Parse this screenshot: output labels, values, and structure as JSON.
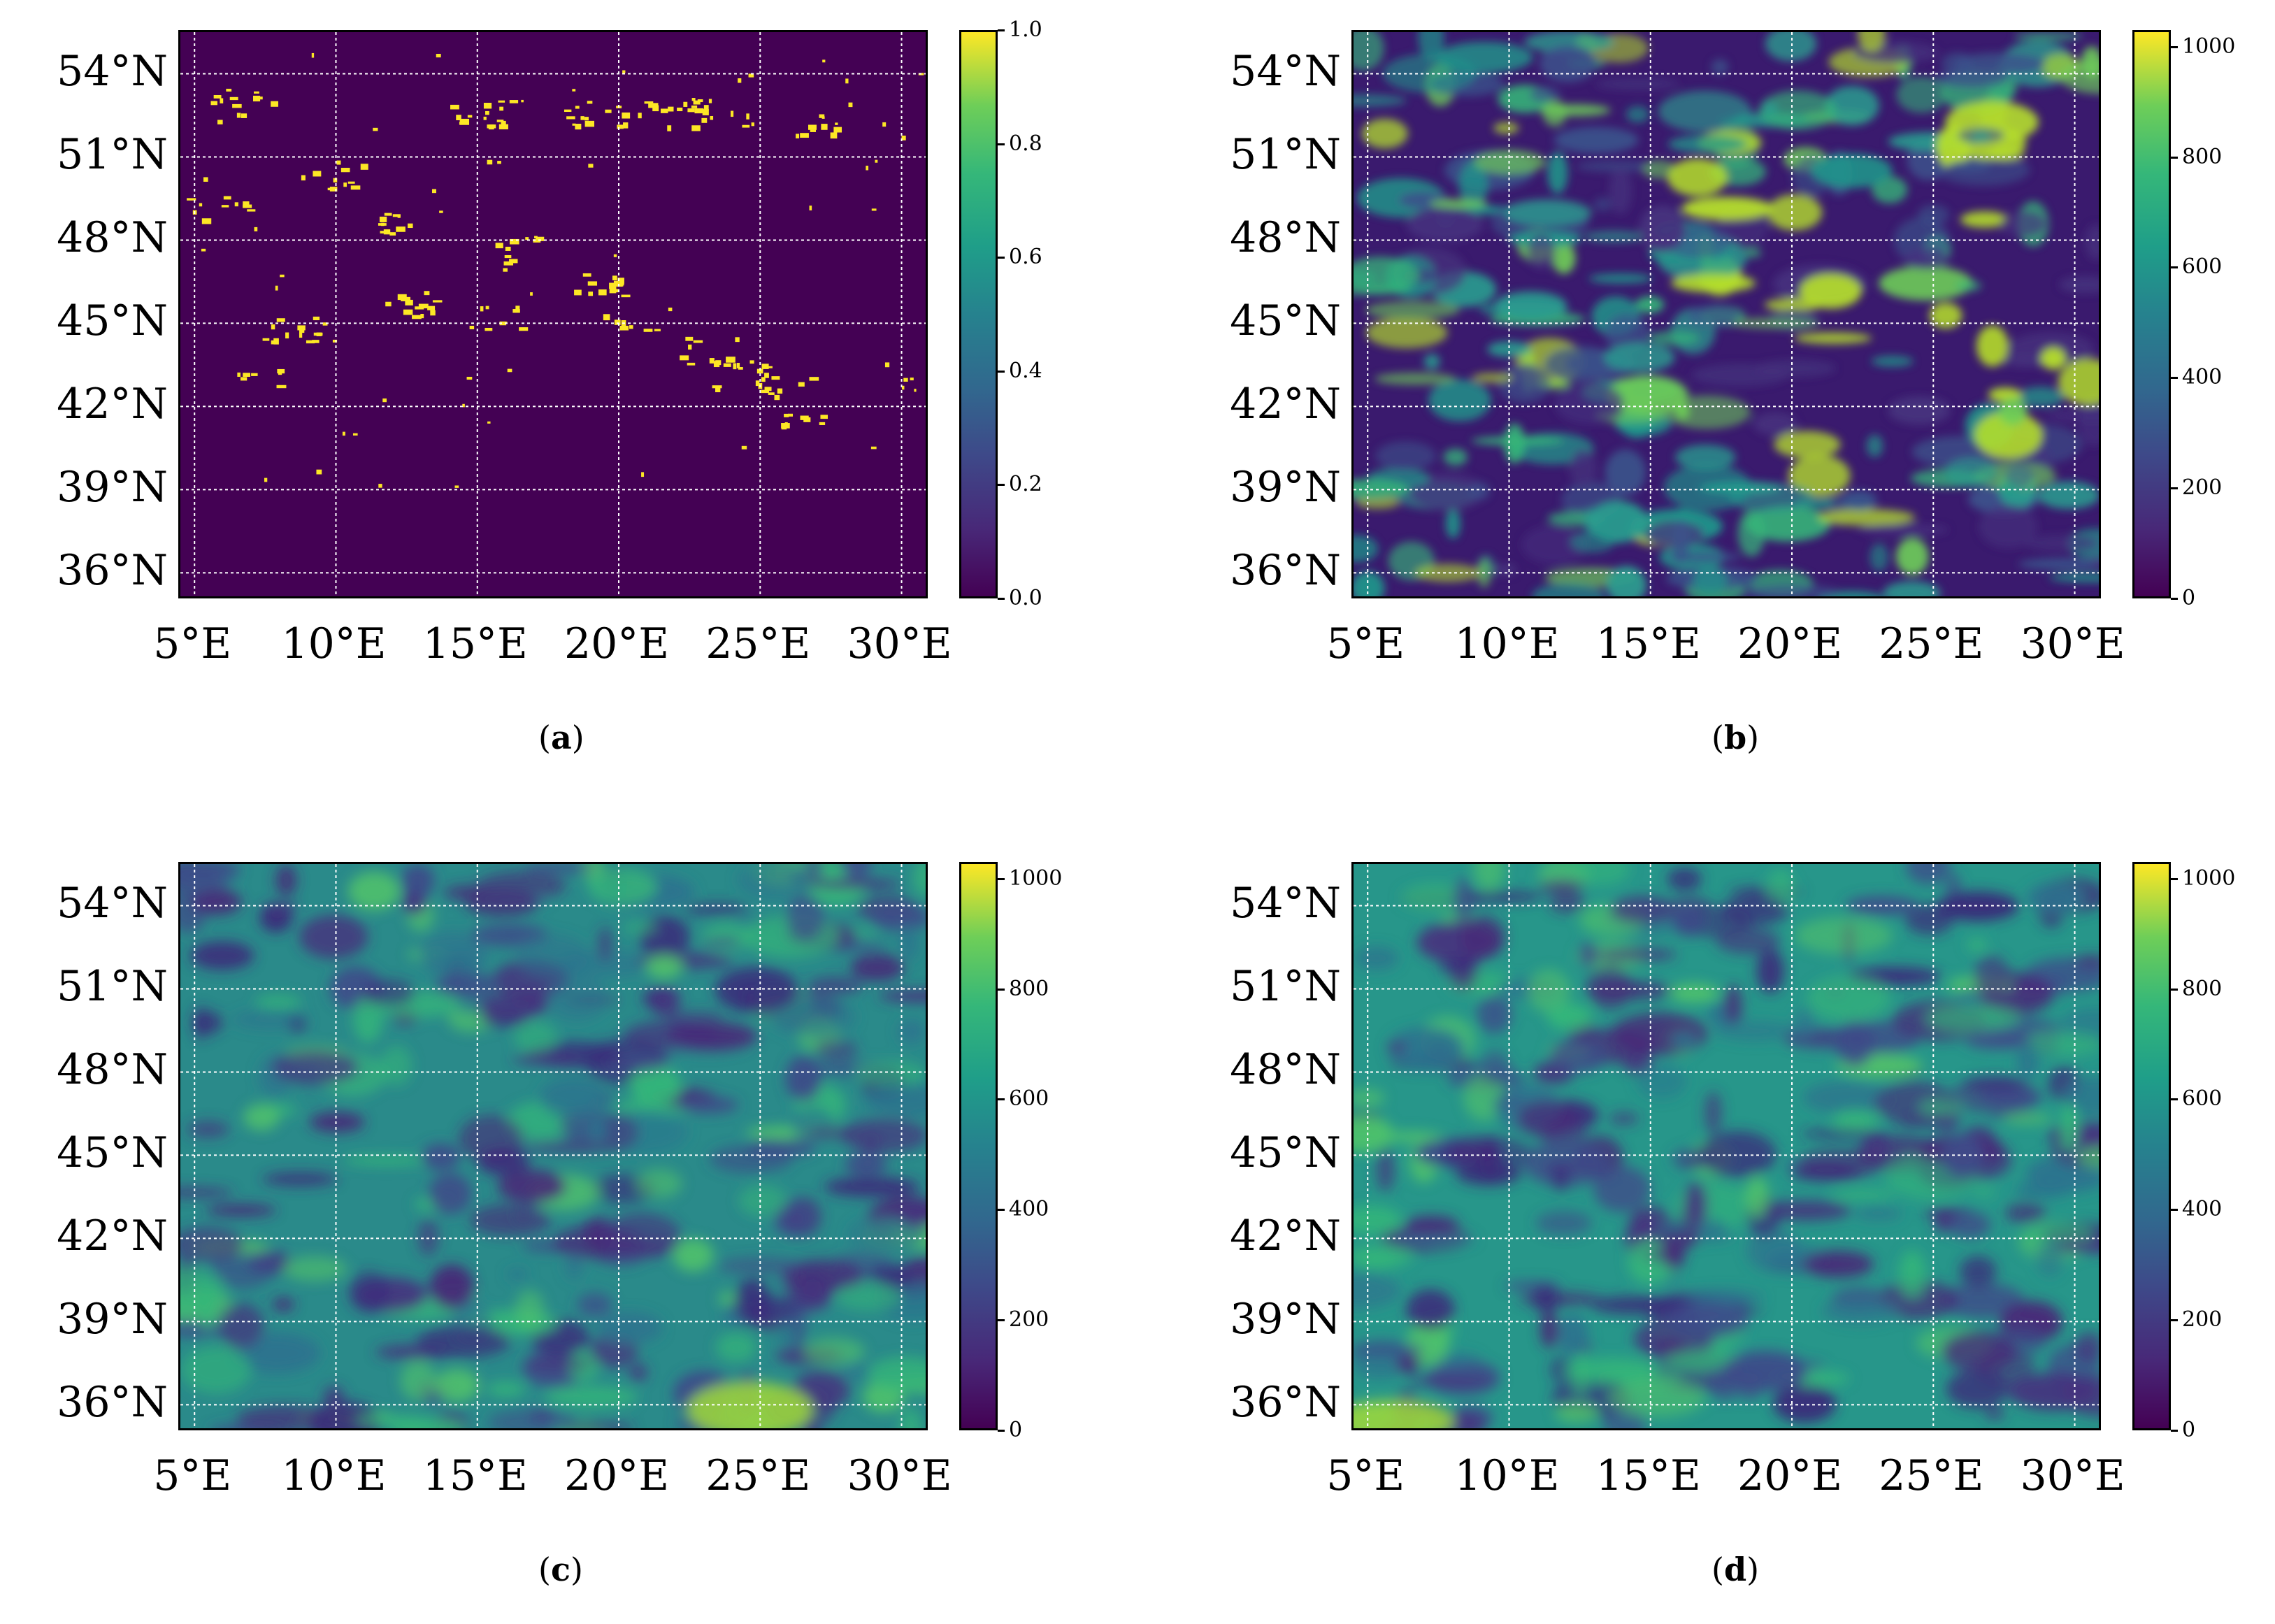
{
  "figure": {
    "lat_labels": [
      "54°N",
      "51°N",
      "48°N",
      "45°N",
      "42°N",
      "39°N",
      "36°N"
    ],
    "lon_labels": [
      "5°E",
      "10°E",
      "15°E",
      "20°E",
      "25°E",
      "30°E"
    ],
    "colormap": "viridis",
    "colors": {
      "viridis_low": "#440154",
      "viridis_mid": "#21918c",
      "viridis_high": "#fde725",
      "grid": "#ffffff"
    }
  },
  "chart_data": [
    {
      "type": "heatmap",
      "caption_letter": "a",
      "caption": "(a)",
      "description_values": "binary mask",
      "colorbar": {
        "min": 0.0,
        "max": 1.0,
        "ticks": [
          "0.0",
          "0.2",
          "0.4",
          "0.6",
          "0.8",
          "1.0"
        ]
      },
      "lat_range": [
        35,
        55.5
      ],
      "lon_range": [
        4.5,
        31
      ]
    },
    {
      "type": "heatmap",
      "caption_letter": "b",
      "caption": "(b)",
      "colorbar": {
        "min": 0,
        "max": 1030,
        "ticks": [
          "0",
          "200",
          "400",
          "600",
          "800",
          "1000"
        ]
      },
      "lat_range": [
        35,
        55.5
      ],
      "lon_range": [
        4.5,
        31
      ]
    },
    {
      "type": "heatmap",
      "caption_letter": "c",
      "caption": "(c)",
      "colorbar": {
        "min": 0,
        "max": 1030,
        "ticks": [
          "0",
          "200",
          "400",
          "600",
          "800",
          "1000"
        ]
      },
      "lat_range": [
        35,
        55.5
      ],
      "lon_range": [
        4.5,
        31
      ]
    },
    {
      "type": "heatmap",
      "caption_letter": "d",
      "caption": "(d)",
      "colorbar": {
        "min": 0,
        "max": 1030,
        "ticks": [
          "0",
          "200",
          "400",
          "600",
          "800",
          "1000"
        ]
      },
      "lat_range": [
        35,
        55.5
      ],
      "lon_range": [
        4.5,
        31
      ]
    }
  ]
}
